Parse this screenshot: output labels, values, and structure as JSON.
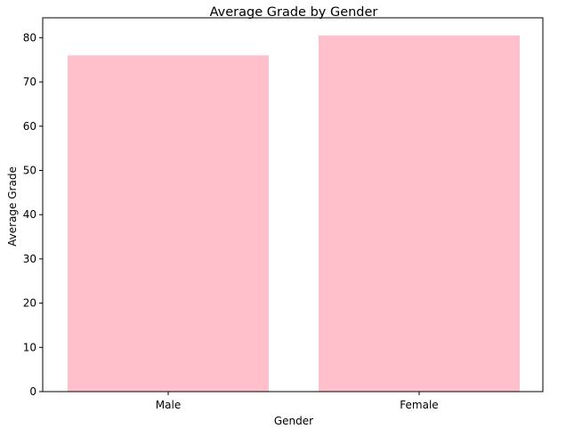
{
  "chart_data": {
    "type": "bar",
    "title": "Average Grade by Gender",
    "xlabel": "Gender",
    "ylabel": "Average Grade",
    "categories": [
      "Male",
      "Female"
    ],
    "values": [
      76.0,
      80.5
    ],
    "ylim": [
      0,
      84.5
    ],
    "yticks": [
      "0",
      "10",
      "20",
      "30",
      "40",
      "50",
      "60",
      "70",
      "80"
    ],
    "bar_color": "#ffc0cb",
    "grid": false,
    "legend": "none"
  }
}
